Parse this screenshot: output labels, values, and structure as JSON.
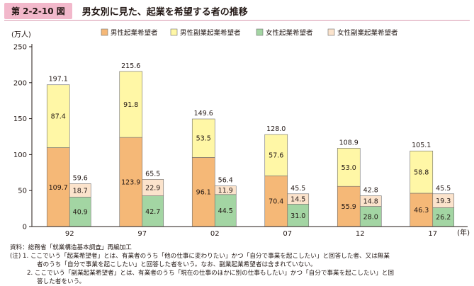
{
  "header": {
    "figure_number": "第 2-2-10 図",
    "title": "男女別に見た、起業を希望する者の推移"
  },
  "colors": {
    "male_entrepreneur": "#f5b877",
    "male_side": "#fff7a6",
    "female_entrepreneur": "#a3d5a3",
    "female_side": "#fbe3cc",
    "badge": "#f2b8cb"
  },
  "chart_data": {
    "type": "bar",
    "stacked": true,
    "ylabel": "(万人)",
    "xlabel": "(年)",
    "ylim": [
      0,
      250
    ],
    "yticks": [
      0,
      50,
      100,
      150,
      200,
      250
    ],
    "categories": [
      "92",
      "97",
      "02",
      "07",
      "12",
      "17"
    ],
    "legend": [
      "男性起業希望者",
      "男性副業起業希望者",
      "女性起業希望者",
      "女性副業起業希望者"
    ],
    "legend_position": "top",
    "male": {
      "entrepreneur": [
        109.7,
        123.9,
        96.1,
        70.4,
        55.9,
        46.3
      ],
      "side": [
        87.4,
        91.8,
        53.5,
        57.6,
        53.0,
        58.8
      ],
      "total": [
        197.1,
        215.6,
        149.6,
        128.0,
        108.9,
        105.1
      ]
    },
    "female": {
      "entrepreneur": [
        40.9,
        42.7,
        44.5,
        31.0,
        28.0,
        26.2
      ],
      "side": [
        18.7,
        22.9,
        11.9,
        14.5,
        14.8,
        19.3
      ],
      "total": [
        59.6,
        65.5,
        56.4,
        45.5,
        42.8,
        45.5
      ]
    }
  },
  "notes": {
    "source": "資料：総務省「就業構造基本調査」再編加工",
    "note1_line1": "(注) 1. ここでいう「起業希望者」とは、有業者のうち「他の仕事に変わりたい」かつ「自分で事業を起こしたい」と回答した者、又は無業",
    "note1_line2": "者のうち「自分で事業を起こしたい」と回答した者をいう。なお、副業起業希望者は含まれていない。",
    "note2_line1": "2. ここでいう「副業起業希望者」とは、有業者のうち「現在の仕事のほかに別の仕事もしたい」かつ「自分で事業を起こしたい」と回",
    "note2_line2": "答した者をいう。"
  }
}
